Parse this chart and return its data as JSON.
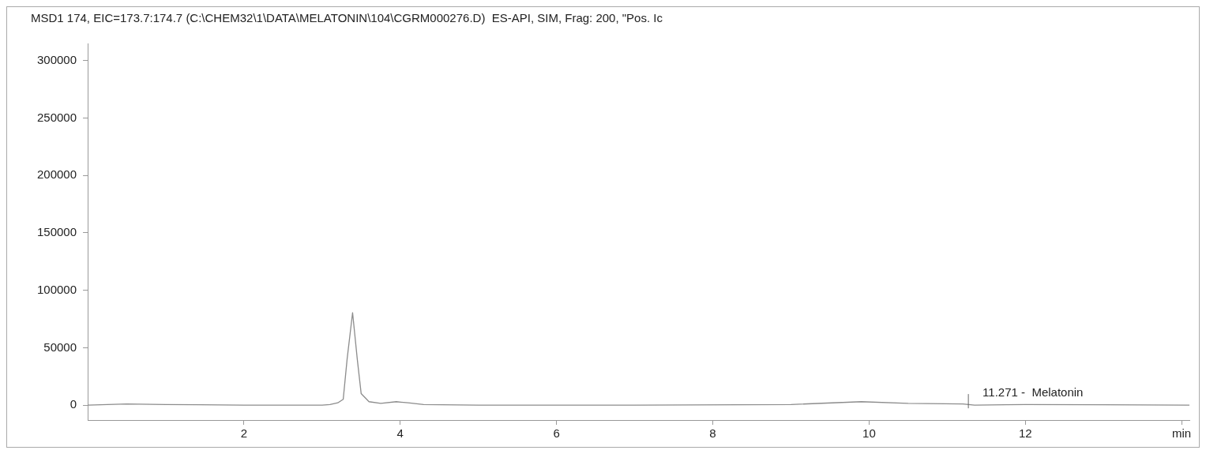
{
  "chart_data": {
    "type": "line",
    "title": "MSD1 174, EIC=173.7:174.7 (C:\\CHEM32\\1\\DATA\\MELATONIN\\104\\CGRM000276.D)  ES-API, SIM, Frag: 200, \"Pos. Ic",
    "x": [
      0,
      0.5,
      1,
      2,
      3,
      3.1,
      3.2,
      3.27,
      3.32,
      3.39,
      3.45,
      3.5,
      3.6,
      3.75,
      3.95,
      4.1,
      4.3,
      5,
      7,
      9,
      9.9,
      10.5,
      11.2,
      11.35,
      12,
      13,
      14.1
    ],
    "series": [
      {
        "color": "#8c8c8c",
        "values": [
          0,
          1000,
          500,
          0,
          0,
          500,
          2000,
          5000,
          40000,
          80500,
          40000,
          10000,
          3000,
          1500,
          3000,
          2000,
          500,
          0,
          0,
          500,
          3000,
          1500,
          1000,
          0,
          500,
          300,
          0
        ]
      }
    ],
    "xlim": [
      0,
      14.1
    ],
    "xticks": [
      2,
      4,
      6,
      8,
      10,
      12,
      {
        "value": 14,
        "label": "min"
      }
    ],
    "ylim": [
      -13000,
      315000
    ],
    "yticks": [
      0,
      50000,
      100000,
      150000,
      200000,
      250000,
      300000
    ],
    "annotations": [
      {
        "text": "11.271 -  Melatonin",
        "x": 11.271,
        "y": 0
      }
    ],
    "grid": false,
    "legend": false,
    "marker": "none",
    "line_style": "solid"
  }
}
